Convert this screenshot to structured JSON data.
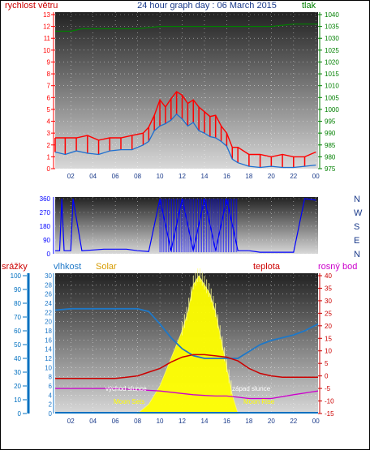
{
  "title": "24 hour graph day : 06 March 2015",
  "colors": {
    "wind": "#ff0000",
    "wind_avg": "#1e6fd0",
    "pressure": "#008000",
    "direction": "#0000ff",
    "rain": "#0070c0",
    "humidity": "#1e78c8",
    "solar": "#ffff00",
    "temperature": "#cc0000",
    "dewpoint": "#cc00cc",
    "hour_text": "#1a3a8a"
  },
  "chart_data": [
    {
      "type": "line",
      "name": "wind-pressure",
      "left_label": "rychlost větru",
      "right_label": "tlak",
      "left_ylim": [
        0,
        13
      ],
      "left_ticks": [
        "0",
        "1",
        "2",
        "3",
        "4",
        "5",
        "6",
        "7",
        "8",
        "9",
        "10",
        "11",
        "12",
        "13"
      ],
      "right_ylim": [
        975,
        1040
      ],
      "right_ticks": [
        "975",
        "980",
        "985",
        "990",
        "995",
        "1000",
        "1005",
        "1010",
        "1015",
        "1020",
        "1025",
        "1030",
        "1035",
        "1040"
      ],
      "x_ticks": [
        "02",
        "04",
        "06",
        "08",
        "10",
        "12",
        "14",
        "16",
        "18",
        "20",
        "22",
        "00"
      ],
      "xlim_hours": [
        0.6,
        24.2
      ],
      "grid": "dotted",
      "series": [
        {
          "name": "gust",
          "x": [
            0.6,
            1.5,
            2.5,
            3.5,
            4.5,
            5.5,
            6.5,
            7.5,
            8.5,
            9.0,
            9.5,
            10.0,
            10.5,
            11.0,
            11.5,
            12.0,
            12.5,
            13.0,
            13.5,
            14.0,
            14.5,
            15.0,
            15.5,
            16.0,
            16.5,
            17.0,
            18.0,
            19.0,
            20.0,
            21.0,
            22.0,
            23.0,
            24.0
          ],
          "y": [
            2.6,
            2.6,
            2.6,
            2.8,
            2.4,
            2.6,
            2.6,
            2.8,
            3.0,
            3.5,
            4.5,
            5.8,
            5.2,
            5.9,
            6.5,
            6.2,
            5.5,
            5.8,
            5.2,
            4.8,
            4.4,
            4.5,
            3.6,
            3.0,
            1.8,
            1.8,
            1.2,
            1.2,
            1.0,
            1.2,
            1.0,
            1.0,
            1.4
          ]
        },
        {
          "name": "average",
          "x": [
            0.6,
            1.5,
            2.5,
            3.5,
            4.5,
            5.5,
            6.5,
            7.5,
            8.5,
            9.0,
            9.5,
            10.0,
            10.5,
            11.0,
            11.5,
            12.0,
            12.5,
            13.0,
            13.5,
            14.0,
            14.5,
            15.0,
            15.5,
            16.0,
            16.5,
            17.0,
            18.0,
            19.0,
            20.0,
            21.0,
            22.0,
            23.0,
            24.0
          ],
          "y": [
            1.4,
            1.2,
            1.5,
            1.3,
            1.2,
            1.5,
            1.6,
            1.6,
            2.0,
            2.3,
            3.2,
            3.6,
            3.8,
            4.1,
            4.6,
            4.2,
            3.6,
            3.9,
            3.2,
            3.0,
            2.7,
            2.6,
            2.3,
            1.9,
            0.8,
            0.5,
            0.2,
            0.1,
            0.2,
            0.1,
            0.1,
            0.2,
            0.3
          ]
        },
        {
          "name": "pressure",
          "x": [
            0.6,
            2.0,
            3.0,
            4.0,
            6.0,
            8.0,
            10.0,
            12.0,
            14.0,
            16.0,
            18.0,
            20.0,
            22.0,
            24.2
          ],
          "y": [
            1033,
            1033,
            1034,
            1034,
            1034,
            1034,
            1035,
            1035,
            1035,
            1035,
            1035,
            1035,
            1036,
            1036
          ]
        }
      ]
    },
    {
      "type": "scatter",
      "name": "wind-direction",
      "left_ticks": [
        "0",
        "90",
        "180",
        "270",
        "360"
      ],
      "left_ylim": [
        0,
        360
      ],
      "right_ticks": [
        "N",
        "W",
        "S",
        "E",
        "N"
      ],
      "series": [
        {
          "name": "direction",
          "x": [
            0.6,
            1.0,
            1.2,
            1.4,
            2.0,
            2.2,
            3.0,
            4.0,
            5.0,
            6.0,
            7.0,
            8.0,
            9.0,
            10.0,
            11.0,
            12.0,
            13.0,
            14.0,
            15.0,
            16.0,
            17.0,
            18.0,
            19.0,
            20.0,
            21.0,
            22.0,
            23.0,
            24.0
          ],
          "y": [
            20,
            20,
            360,
            20,
            20,
            360,
            20,
            25,
            30,
            30,
            30,
            20,
            15,
            360,
            20,
            360,
            20,
            360,
            20,
            360,
            20,
            20,
            10,
            10,
            10,
            10,
            360,
            350
          ]
        }
      ]
    },
    {
      "type": "line",
      "name": "temperature-humidity",
      "left_outer_label": "srážky",
      "left_inner_label": "vlhkost",
      "solar_label": "Solar",
      "temp_label": "teplota",
      "dew_label": "rosný bod",
      "rain_ticks": [
        "0",
        "10",
        "20",
        "30",
        "40",
        "50",
        "60",
        "70",
        "80",
        "90",
        "100"
      ],
      "rain_ylim": [
        0,
        100
      ],
      "humidity_ticks": [
        "0",
        "2",
        "4",
        "6",
        "8",
        "10",
        "12",
        "14",
        "16",
        "18",
        "20",
        "22",
        "24",
        "26",
        "28",
        "30"
      ],
      "temp_ylim": [
        -15,
        40
      ],
      "temp_ticks": [
        "-15",
        "-10",
        "-5",
        "0",
        "5",
        "10",
        "15",
        "20",
        "25",
        "30",
        "35",
        "40"
      ],
      "annotations": [
        "východ slunce",
        "západ slunce",
        "Moon Sets",
        "Moon Rise"
      ],
      "series": [
        {
          "name": "humidity",
          "x": [
            0.6,
            2,
            4,
            6,
            8,
            9,
            10,
            11,
            12,
            13,
            14,
            15,
            16,
            16.5,
            17,
            18,
            19,
            20,
            21,
            22,
            23,
            24.2
          ],
          "y": [
            75,
            76,
            76,
            76,
            76,
            74,
            65,
            55,
            47,
            42,
            40,
            40,
            40,
            40,
            40,
            45,
            50,
            53,
            55,
            57,
            60,
            65
          ]
        },
        {
          "name": "temperature",
          "x": [
            0.6,
            2,
            4,
            6,
            7,
            8,
            9,
            10,
            11,
            12,
            13,
            14,
            15,
            16,
            17,
            18,
            19,
            20,
            21,
            22,
            23,
            24.2
          ],
          "y": [
            -1,
            -1,
            -1,
            -1,
            -0.5,
            0,
            1.5,
            3,
            5.5,
            7.5,
            8.5,
            8.5,
            8,
            7.5,
            6,
            3,
            1,
            0,
            -0.5,
            -0.5,
            -0.5,
            -0.5
          ]
        },
        {
          "name": "dewpoint",
          "x": [
            0.6,
            2,
            4,
            6,
            8,
            10,
            12,
            13,
            14,
            15,
            16,
            17,
            18,
            19,
            20,
            22,
            24.2
          ],
          "y": [
            -5,
            -5,
            -5,
            -5,
            -5.5,
            -6,
            -7,
            -7.5,
            -7.8,
            -8,
            -8,
            -8.5,
            -9,
            -9,
            -9,
            -7.5,
            -6
          ]
        },
        {
          "name": "solar",
          "x": [
            8,
            9,
            10,
            11,
            12,
            12.5,
            13,
            13.5,
            14,
            14.5,
            15,
            15.5,
            16,
            16.5,
            17
          ],
          "y": [
            0,
            2,
            6,
            12,
            18,
            22,
            28,
            30,
            28,
            26,
            22,
            16,
            10,
            4,
            0
          ]
        }
      ]
    }
  ]
}
